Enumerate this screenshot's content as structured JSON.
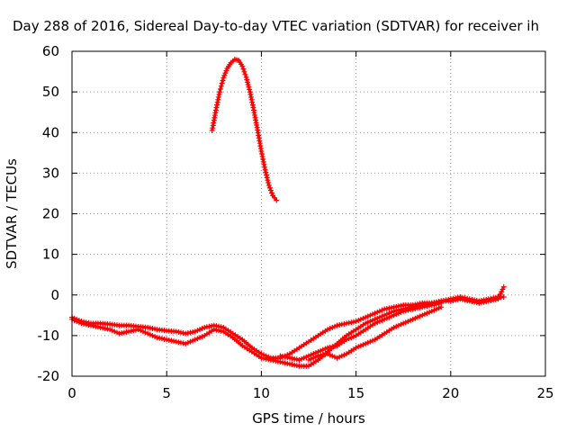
{
  "chart_data": {
    "type": "scatter",
    "title": "Day 288 of 2016, Sidereal Day-to-day VTEC variation (SDTVAR) for receiver ih",
    "xlabel": "GPS time / hours",
    "ylabel": "SDTVAR / TECUs",
    "xlim": [
      0,
      25
    ],
    "ylim": [
      -20,
      60
    ],
    "xticks": [
      "0",
      "5",
      "10",
      "15",
      "20",
      "25"
    ],
    "yticks": [
      "-20",
      "-10",
      "0",
      "10",
      "20",
      "30",
      "40",
      "50",
      "60"
    ],
    "grid": true,
    "legend": "none",
    "marker": "+",
    "series_color": "#ff0000",
    "series": [
      {
        "x": [
          7.4,
          7.6,
          7.8,
          8.0,
          8.2,
          8.4,
          8.6,
          8.8,
          9.0,
          9.2,
          9.4,
          9.6,
          9.8,
          10.0,
          10.2,
          10.4,
          10.6,
          10.8
        ],
        "values": [
          40.5,
          45.5,
          50.0,
          53.5,
          55.8,
          57.2,
          58.0,
          57.8,
          56.3,
          53.6,
          50.0,
          45.5,
          40.6,
          35.4,
          30.8,
          27.0,
          24.5,
          23.3
        ]
      },
      {
        "x": [
          0.0,
          0.5,
          1.0,
          1.5,
          2.0,
          2.5,
          3.0,
          3.5,
          4.0,
          4.5,
          5.0,
          5.5,
          6.0,
          6.5,
          7.0,
          7.5,
          8.0,
          8.5,
          9.0,
          9.5,
          10.0,
          10.5,
          11.0,
          11.5,
          12.0,
          12.5,
          13.0,
          13.5,
          14.0,
          14.5,
          15.0,
          15.5,
          16.0,
          16.5,
          17.0,
          17.5,
          18.0,
          18.5,
          19.0,
          19.5,
          20.0,
          20.5,
          21.0,
          21.5,
          22.0,
          22.5,
          22.8
        ],
        "values": [
          -5.5,
          -6.5,
          -7.0,
          -7.0,
          -7.2,
          -7.5,
          -7.5,
          -7.8,
          -8.0,
          -8.5,
          -8.8,
          -9.0,
          -9.5,
          -9.0,
          -8.0,
          -7.5,
          -8.0,
          -9.5,
          -11.0,
          -13.0,
          -14.5,
          -15.5,
          -15.5,
          -14.5,
          -13.0,
          -11.5,
          -10.0,
          -8.5,
          -7.5,
          -7.0,
          -6.5,
          -5.5,
          -4.5,
          -3.5,
          -3.0,
          -2.5,
          -2.5,
          -2.0,
          -2.0,
          -1.5,
          -1.0,
          -0.5,
          -1.0,
          -1.5,
          -1.0,
          -0.5,
          -0.5
        ]
      },
      {
        "x": [
          0.0,
          0.5,
          1.0,
          1.5,
          2.0,
          2.5,
          3.0,
          3.5,
          4.0,
          4.5,
          5.0,
          5.5,
          6.0,
          6.5,
          7.0,
          7.5,
          8.0,
          8.5,
          9.0,
          9.5,
          10.0,
          10.5,
          11.0,
          11.5,
          12.0,
          12.5,
          13.0,
          13.5,
          14.0,
          14.5,
          15.0,
          15.5,
          16.0,
          16.5,
          17.0,
          17.5,
          18.0,
          18.5,
          19.0,
          19.5,
          20.0,
          20.5,
          21.0,
          21.5,
          22.0,
          22.5,
          22.8
        ],
        "values": [
          -6.0,
          -7.0,
          -7.5,
          -8.0,
          -8.5,
          -9.5,
          -9.0,
          -8.5,
          -9.5,
          -10.5,
          -11.0,
          -11.5,
          -12.0,
          -11.0,
          -10.0,
          -8.5,
          -9.0,
          -10.5,
          -12.5,
          -14.0,
          -15.5,
          -16.0,
          -16.5,
          -17.0,
          -17.5,
          -17.5,
          -16.0,
          -14.0,
          -12.0,
          -10.0,
          -8.5,
          -7.0,
          -6.0,
          -5.0,
          -4.0,
          -3.5,
          -3.0,
          -2.5,
          -2.0,
          -1.5,
          -1.5,
          -1.0,
          -1.5,
          -2.0,
          -1.5,
          -1.0,
          2.0
        ]
      },
      {
        "x": [
          11.0,
          11.5,
          12.0,
          12.5,
          13.0,
          13.5,
          14.0,
          14.5,
          15.0,
          15.5,
          16.0,
          16.5,
          17.0,
          17.5,
          18.0,
          18.5,
          19.0,
          19.5
        ],
        "values": [
          -15.0,
          -15.5,
          -16.0,
          -15.0,
          -14.0,
          -13.0,
          -12.5,
          -11.0,
          -10.0,
          -8.5,
          -7.0,
          -6.0,
          -5.0,
          -4.0,
          -3.5,
          -3.0,
          -2.5,
          -2.0
        ]
      },
      {
        "x": [
          12.5,
          13.0,
          13.5,
          14.0,
          14.5,
          15.0,
          15.5,
          16.0,
          16.5,
          17.0,
          17.5,
          18.0,
          18.5,
          19.0,
          19.5
        ],
        "values": [
          -16.0,
          -15.0,
          -14.5,
          -15.5,
          -14.5,
          -13.0,
          -12.0,
          -11.0,
          -9.5,
          -8.0,
          -7.0,
          -6.0,
          -5.0,
          -4.0,
          -3.0
        ]
      }
    ]
  }
}
